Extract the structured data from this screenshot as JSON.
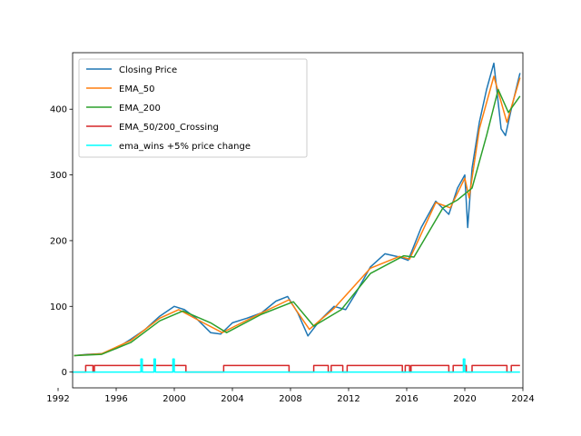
{
  "chart_data": {
    "type": "line",
    "title": "",
    "xlabel": "",
    "ylabel": "",
    "xlim": [
      1993.0,
      2024.0
    ],
    "ylim": [
      -24,
      486
    ],
    "xticks": [
      1992,
      1996,
      2000,
      2004,
      2008,
      2012,
      2016,
      2020,
      2024
    ],
    "yticks": [
      0,
      100,
      200,
      300,
      400
    ],
    "grid": false,
    "legend_position": "top-left",
    "series": [
      {
        "name": "Closing Price",
        "color": "#1f77b4",
        "x": [
          1993.1,
          1994.0,
          1995.0,
          1996.0,
          1997.0,
          1998.0,
          1999.0,
          2000.0,
          2000.7,
          2001.5,
          2002.5,
          2003.2,
          2004.0,
          2005.0,
          2006.0,
          2007.0,
          2007.8,
          2008.5,
          2009.2,
          2010.0,
          2011.0,
          2011.8,
          2012.5,
          2013.5,
          2014.5,
          2015.5,
          2016.1,
          2017.0,
          2018.0,
          2018.9,
          2019.5,
          2020.0,
          2020.2,
          2020.5,
          2021.0,
          2021.5,
          2022.0,
          2022.5,
          2022.8,
          2023.2,
          2023.8
        ],
        "y": [
          25,
          27,
          28,
          36,
          50,
          65,
          85,
          100,
          95,
          82,
          60,
          58,
          75,
          82,
          90,
          108,
          115,
          90,
          55,
          78,
          100,
          95,
          120,
          160,
          180,
          175,
          170,
          220,
          260,
          240,
          280,
          300,
          220,
          310,
          380,
          430,
          470,
          370,
          360,
          400,
          455
        ]
      },
      {
        "name": "EMA_50",
        "color": "#ff7f0e",
        "x": [
          1993.1,
          1995.0,
          1997.0,
          1999.0,
          2000.3,
          2002.0,
          2003.3,
          2006.0,
          2007.9,
          2009.3,
          2011.0,
          2013.5,
          2015.5,
          2016.2,
          2018.0,
          2019.0,
          2020.0,
          2020.3,
          2021.0,
          2022.0,
          2022.9,
          2023.8
        ],
        "y": [
          25,
          28,
          48,
          82,
          95,
          75,
          60,
          90,
          110,
          65,
          97,
          158,
          176,
          172,
          258,
          250,
          295,
          265,
          370,
          450,
          380,
          448
        ]
      },
      {
        "name": "EMA_200",
        "color": "#2ca02c",
        "x": [
          1993.1,
          1995.0,
          1997.0,
          1999.0,
          2000.6,
          2002.5,
          2003.6,
          2006.0,
          2008.2,
          2009.6,
          2011.5,
          2013.5,
          2015.8,
          2016.5,
          2018.5,
          2019.5,
          2020.5,
          2021.5,
          2022.3,
          2023.0,
          2023.8
        ],
        "y": [
          25,
          27,
          45,
          78,
          93,
          75,
          60,
          88,
          107,
          70,
          95,
          150,
          177,
          175,
          250,
          262,
          280,
          360,
          430,
          395,
          420
        ]
      },
      {
        "name": "EMA_50/200_Crossing",
        "color": "#d62728",
        "x": [
          1993.0,
          1993.9,
          1993.9,
          1994.4,
          1994.4,
          1994.5,
          1994.5,
          2000.8,
          2000.8,
          2003.4,
          2003.4,
          2007.9,
          2007.9,
          2009.6,
          2009.6,
          2010.6,
          2010.6,
          2010.8,
          2010.8,
          2011.6,
          2011.6,
          2011.9,
          2011.9,
          2015.7,
          2015.7,
          2015.9,
          2015.9,
          2016.2,
          2016.2,
          2016.3,
          2016.3,
          2018.9,
          2018.9,
          2019.2,
          2019.2,
          2020.1,
          2020.1,
          2020.5,
          2020.5,
          2022.9,
          2022.9,
          2023.2,
          2023.2,
          2023.8
        ],
        "y": [
          0,
          0,
          10,
          10,
          0,
          0,
          10,
          10,
          0,
          0,
          10,
          10,
          0,
          0,
          10,
          10,
          0,
          0,
          10,
          10,
          0,
          0,
          10,
          10,
          0,
          0,
          10,
          10,
          0,
          0,
          10,
          10,
          0,
          0,
          10,
          10,
          0,
          0,
          10,
          10,
          0,
          0,
          10,
          10
        ]
      },
      {
        "name": "ema_wins +5% price change",
        "color": "#00ffff",
        "x": [
          1993.0,
          1997.7,
          1997.7,
          1997.8,
          1997.8,
          1998.6,
          1998.6,
          1998.7,
          1998.7,
          1999.9,
          1999.9,
          2000.0,
          2000.0,
          2019.9,
          2019.9,
          2020.0,
          2020.0,
          2023.8
        ],
        "y": [
          0,
          0,
          20,
          20,
          0,
          0,
          20,
          20,
          0,
          0,
          20,
          20,
          0,
          0,
          20,
          20,
          0,
          0
        ]
      }
    ]
  }
}
